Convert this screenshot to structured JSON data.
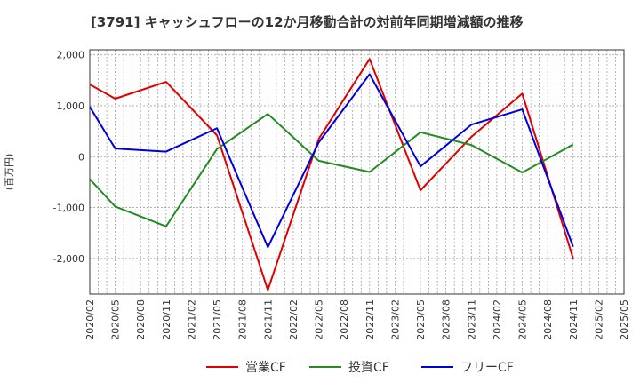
{
  "chart_data": {
    "type": "line",
    "title": "[3791]  キャッシュフローの12か月移動合計の対前年同期増減額の推移",
    "ylabel": "(百万円)",
    "xlabel": "",
    "x": [
      "2020/02",
      "2020/05",
      "2020/08",
      "2020/11",
      "2021/02",
      "2021/05",
      "2021/08",
      "2021/11",
      "2022/02",
      "2022/05",
      "2022/08",
      "2022/11",
      "2023/02",
      "2023/05",
      "2023/08",
      "2023/11",
      "2024/02",
      "2024/05",
      "2024/08",
      "2024/11",
      "2025/02",
      "2025/05"
    ],
    "ylim": [
      -2700,
      2100
    ],
    "yticks": [
      2000,
      1000,
      0,
      -1000,
      -2000
    ],
    "ytick_labels": [
      "2,000",
      "1,000",
      "0",
      "-1,000",
      "-2,000"
    ],
    "grid": true,
    "legend_position": "bottom",
    "series": [
      {
        "name": "営業CF",
        "color": "#e00000",
        "points": [
          [
            "2020/02",
            1420
          ],
          [
            "2020/05",
            1140
          ],
          [
            "2020/11",
            1470
          ],
          [
            "2021/05",
            420
          ],
          [
            "2021/11",
            -2620
          ],
          [
            "2022/05",
            350
          ],
          [
            "2022/11",
            1920
          ],
          [
            "2023/05",
            -660
          ],
          [
            "2023/11",
            390
          ],
          [
            "2024/05",
            1240
          ],
          [
            "2024/11",
            -2000
          ]
        ]
      },
      {
        "name": "投資CF",
        "color": "#228b22",
        "points": [
          [
            "2020/02",
            -440
          ],
          [
            "2020/05",
            -980
          ],
          [
            "2020/11",
            -1370
          ],
          [
            "2021/05",
            150
          ],
          [
            "2021/11",
            840
          ],
          [
            "2022/05",
            -80
          ],
          [
            "2022/11",
            -300
          ],
          [
            "2023/05",
            480
          ],
          [
            "2023/11",
            230
          ],
          [
            "2024/05",
            -310
          ],
          [
            "2024/11",
            240
          ]
        ]
      },
      {
        "name": "フリーCF",
        "color": "#0000dd",
        "points": [
          [
            "2020/02",
            980
          ],
          [
            "2020/05",
            160
          ],
          [
            "2020/11",
            100
          ],
          [
            "2021/05",
            560
          ],
          [
            "2021/11",
            -1780
          ],
          [
            "2022/05",
            280
          ],
          [
            "2022/11",
            1620
          ],
          [
            "2023/05",
            -190
          ],
          [
            "2023/11",
            630
          ],
          [
            "2024/05",
            930
          ],
          [
            "2024/11",
            -1770
          ]
        ]
      }
    ]
  }
}
